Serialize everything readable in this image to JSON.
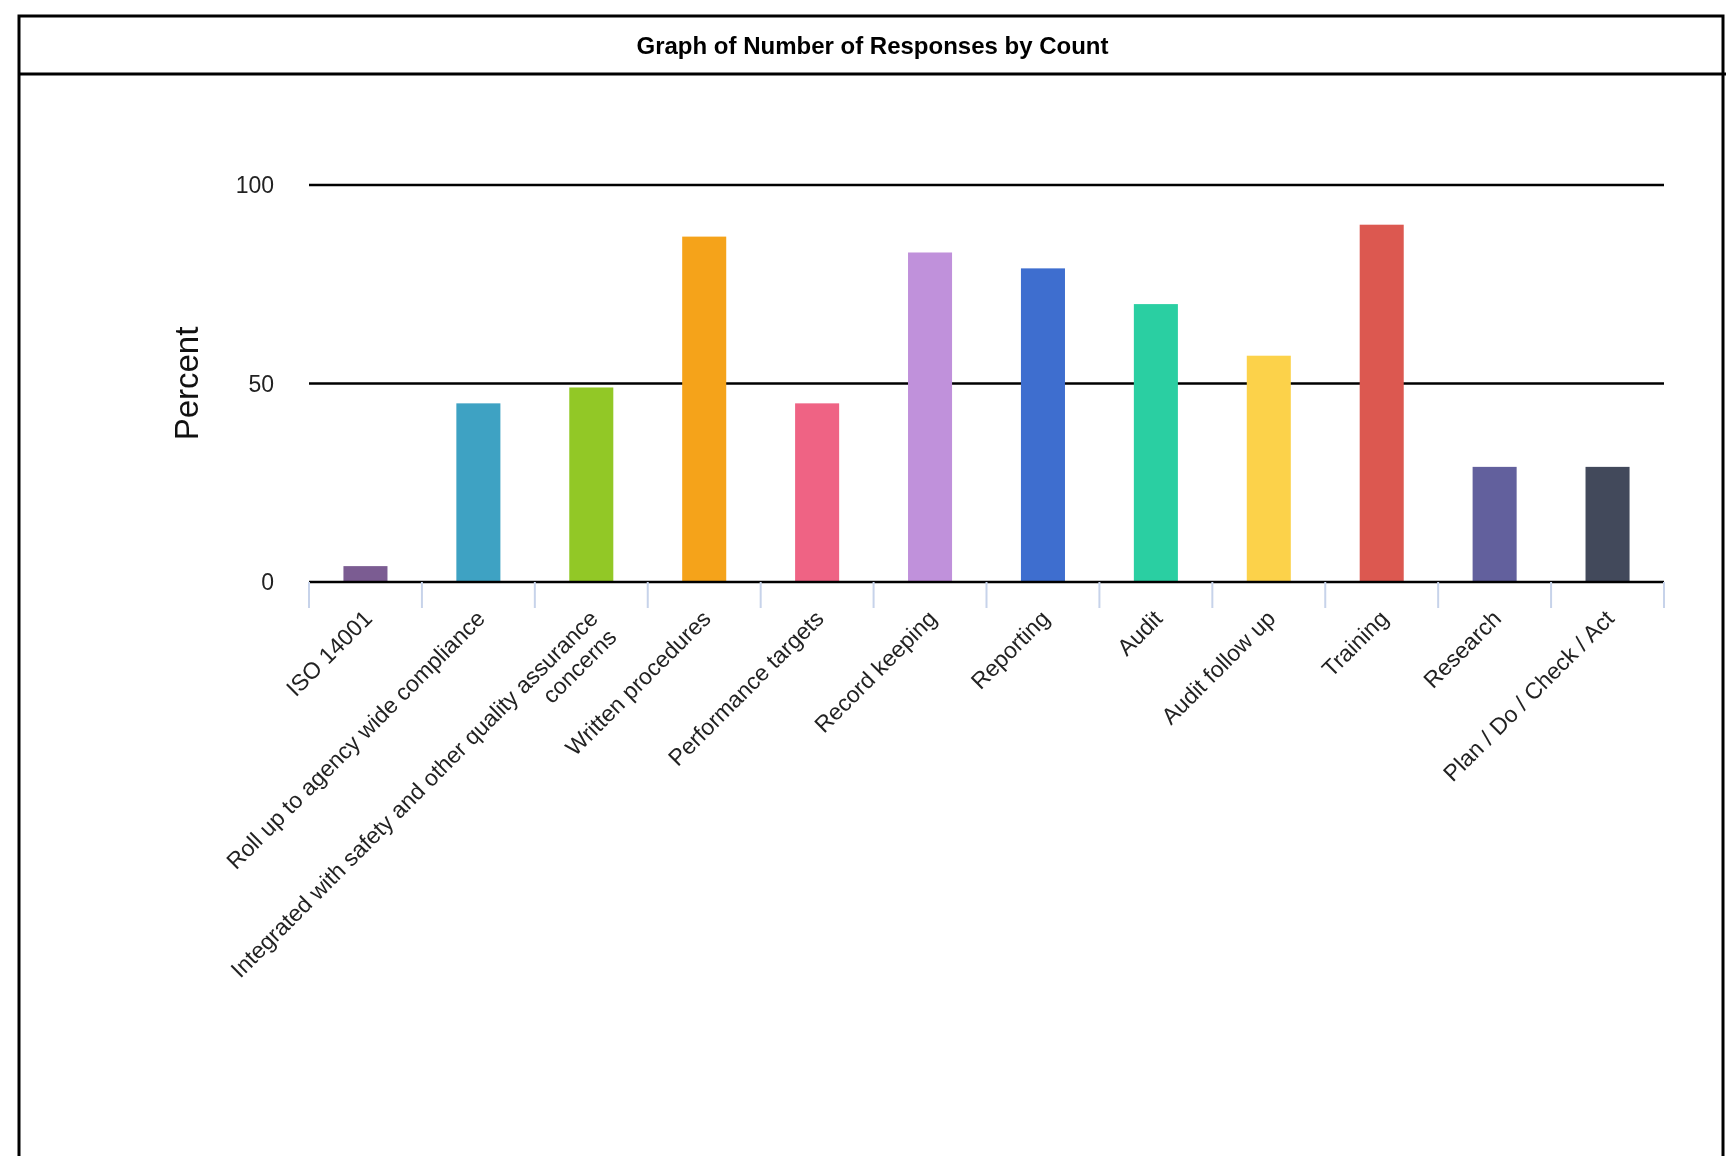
{
  "chart_data": {
    "type": "bar",
    "title": "Graph of Number of Responses by Count",
    "ylabel": "Percent",
    "categories": [
      "ISO 14001",
      "Roll up to agency wide compliance",
      "Integrated with safety and other quality assurance concerns",
      "Written procedures",
      "Performance targets",
      "Record keeping",
      "Reporting",
      "Audit",
      "Audit follow up",
      "Training",
      "Research",
      "Plan / Do / Check / Act"
    ],
    "values": [
      4,
      45,
      49,
      87,
      45,
      83,
      79,
      70,
      57,
      90,
      29,
      29
    ],
    "colors": [
      "#7b5c92",
      "#3ea2c3",
      "#92c826",
      "#f5a31a",
      "#ef6384",
      "#c091db",
      "#3e6ecf",
      "#2acfa2",
      "#fcd24a",
      "#dc5850",
      "#62609d",
      "#42495b"
    ],
    "ylim": [
      0,
      100
    ],
    "yticks": [
      0,
      50,
      100
    ],
    "grid": "y"
  }
}
